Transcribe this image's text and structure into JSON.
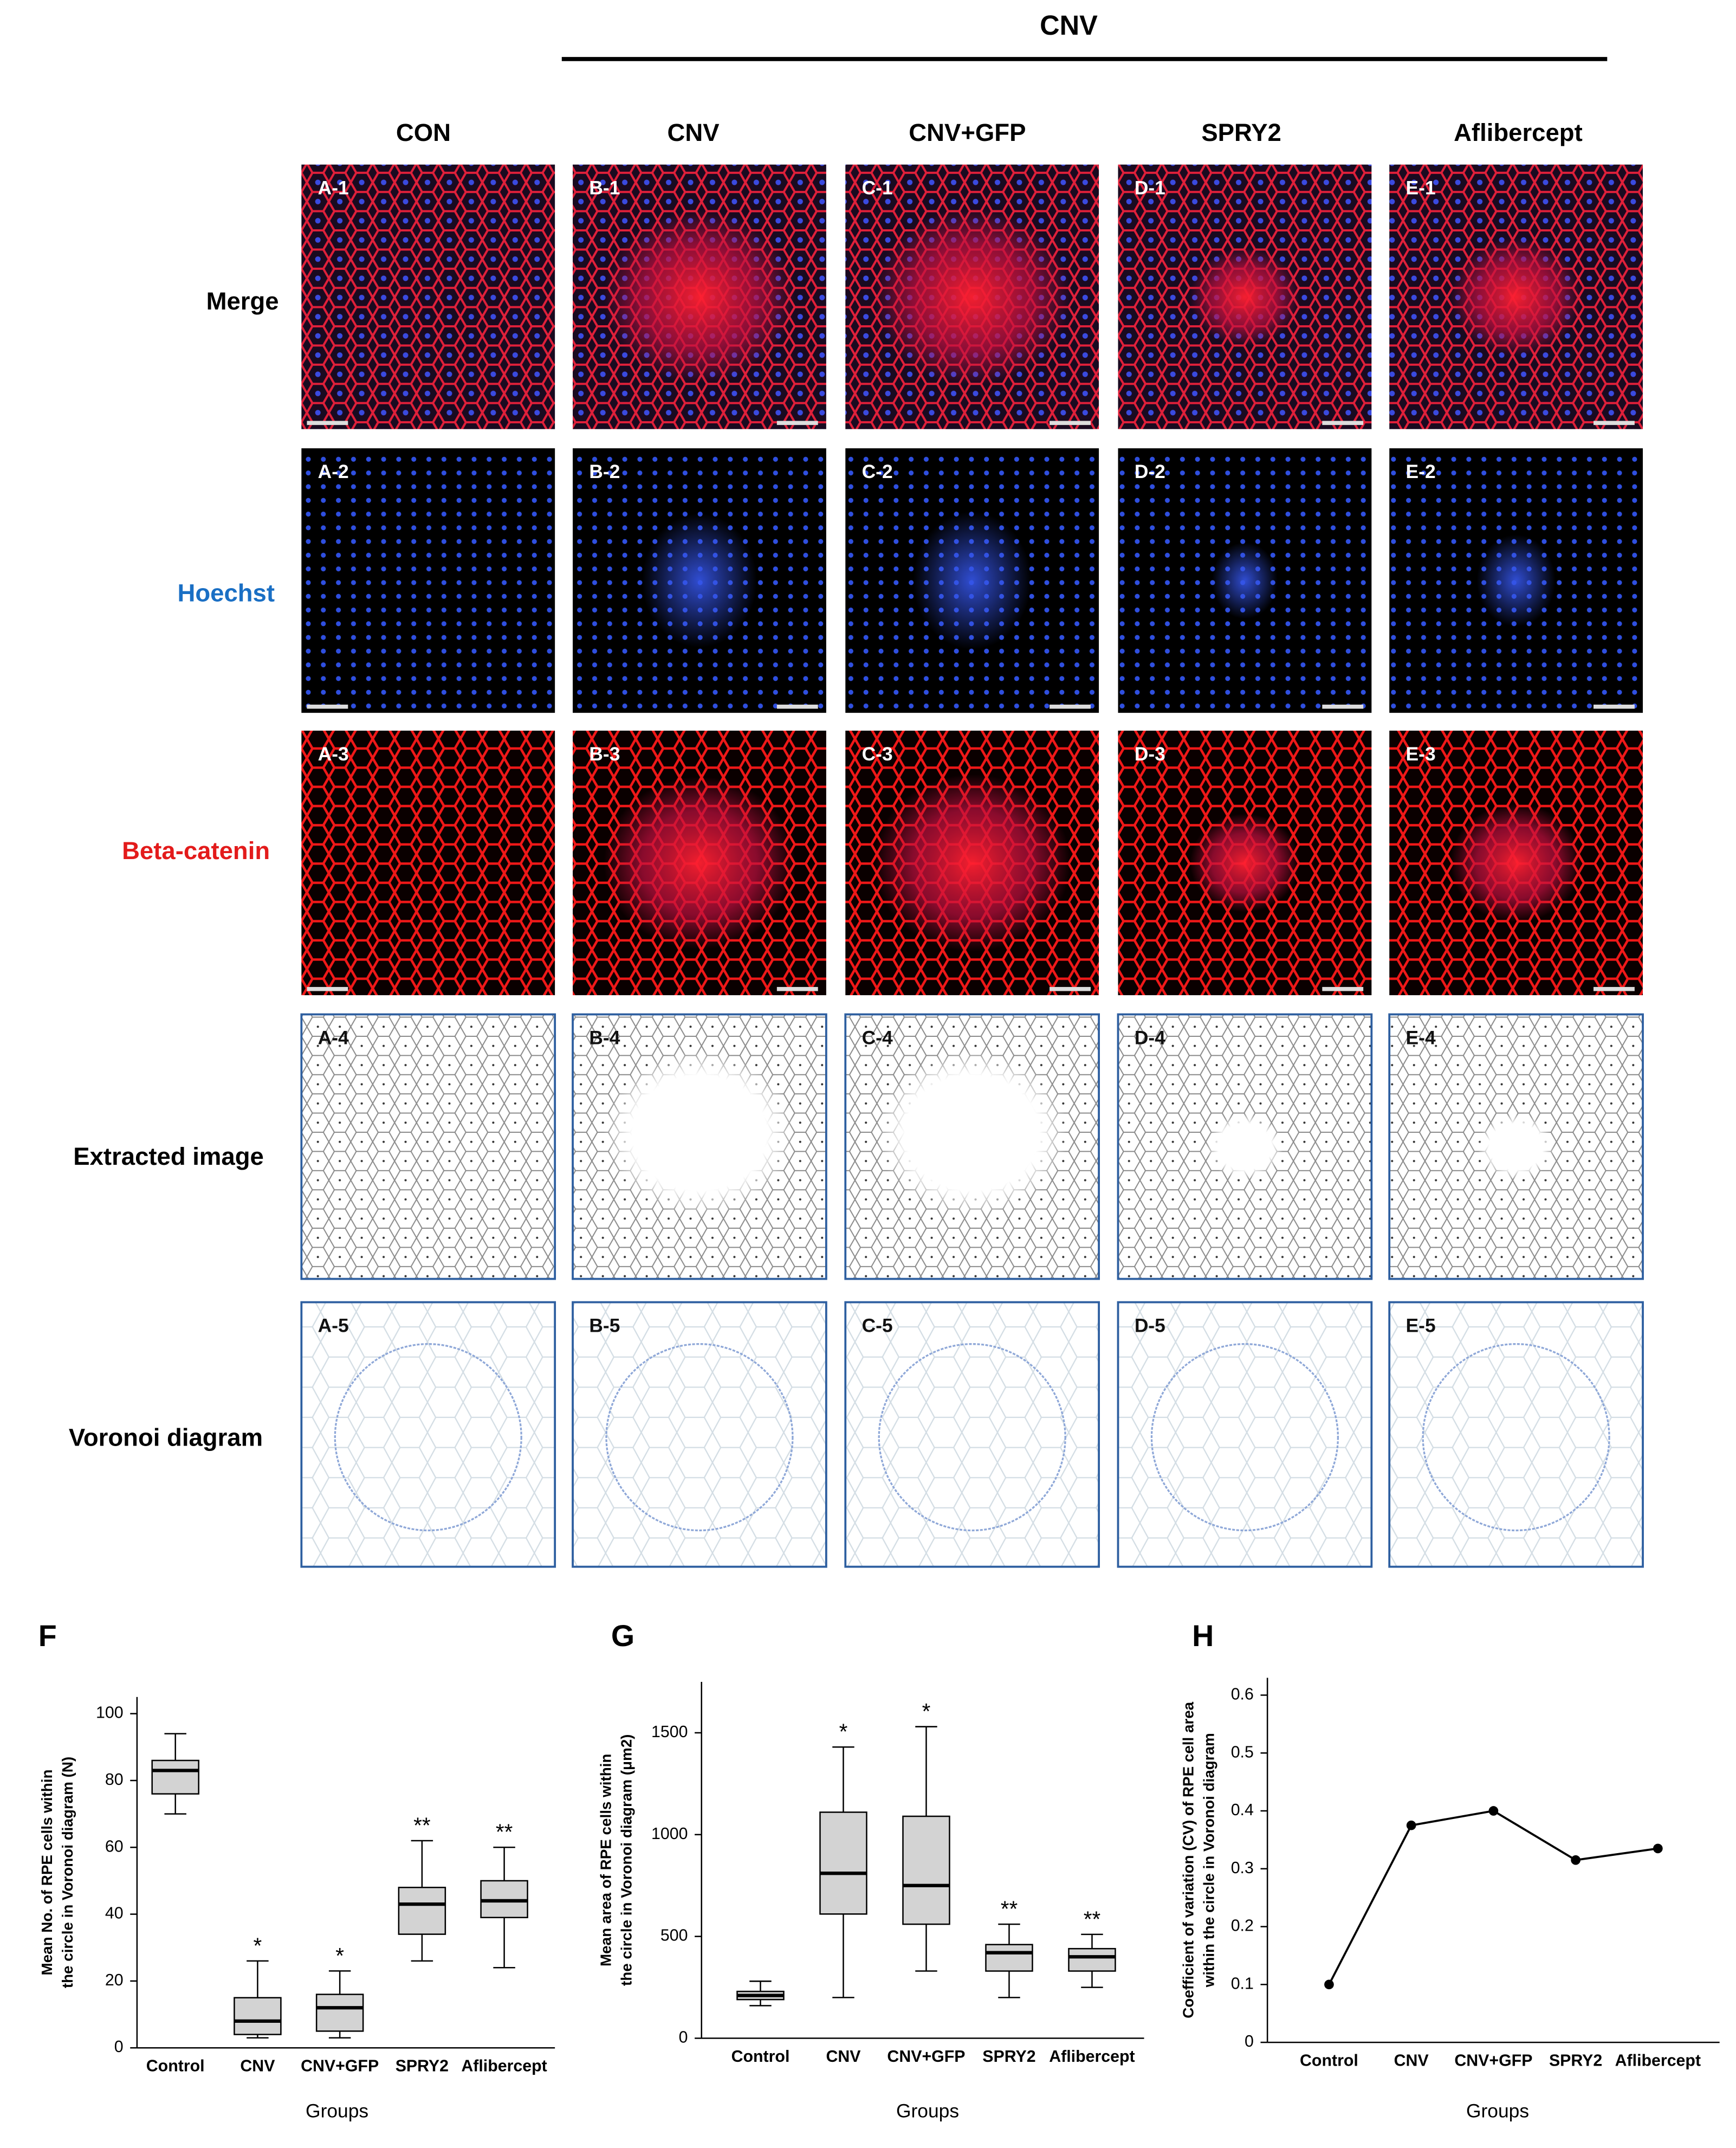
{
  "header": "CNV",
  "columns": [
    "CON",
    "CNV",
    "CNV+GFP",
    "SPRY2",
    "Aflibercept"
  ],
  "rows": [
    "Merge",
    "Hoechst",
    "Beta-catenin",
    "Extracted image",
    "Voronoi diagram"
  ],
  "tiles": [
    [
      "A-1",
      "B-1",
      "C-1",
      "D-1",
      "E-1"
    ],
    [
      "A-2",
      "B-2",
      "C-2",
      "D-2",
      "E-2"
    ],
    [
      "A-3",
      "B-3",
      "C-3",
      "D-3",
      "E-3"
    ],
    [
      "A-4",
      "B-4",
      "C-4",
      "D-4",
      "E-4"
    ],
    [
      "A-5",
      "B-5",
      "C-5",
      "D-5",
      "E-5"
    ]
  ],
  "chart_data": [
    {
      "type": "box",
      "panel": "F",
      "xlabel": "Groups",
      "ylabel": [
        "Mean No. of RPE cells within",
        "the circle in Voronoi diagram (N)"
      ],
      "categories": [
        "Control",
        "CNV",
        "CNV+GFP",
        "SPRY2",
        "Aflibercept"
      ],
      "min": [
        70,
        3,
        3,
        26,
        24
      ],
      "q1": [
        76,
        4,
        5,
        34,
        39
      ],
      "median": [
        83,
        8,
        12,
        43,
        44
      ],
      "q3": [
        86,
        15,
        16,
        48,
        50
      ],
      "max": [
        94,
        26,
        23,
        62,
        60
      ],
      "significance": [
        null,
        "*",
        "*",
        "**",
        "**"
      ],
      "color": "#d3d3d3",
      "ylim": [
        0,
        105
      ],
      "yticks": [
        0,
        20,
        40,
        60,
        80,
        100
      ]
    },
    {
      "type": "box",
      "panel": "G",
      "xlabel": "Groups",
      "ylabel": [
        "Mean area of RPE cells within",
        "the circle in Voronoi diagram (μm2)"
      ],
      "categories": [
        "Control",
        "CNV",
        "CNV+GFP",
        "SPRY2",
        "Aflibercept"
      ],
      "min": [
        160,
        200,
        330,
        200,
        250
      ],
      "q1": [
        190,
        610,
        560,
        330,
        330
      ],
      "median": [
        210,
        810,
        750,
        420,
        400
      ],
      "q3": [
        230,
        1110,
        1090,
        460,
        440
      ],
      "max": [
        280,
        1430,
        1530,
        560,
        510
      ],
      "significance": [
        null,
        "*",
        "*",
        "**",
        "**"
      ],
      "color": "#d3d3d3",
      "ylim": [
        0,
        1750
      ],
      "yticks": [
        0,
        500,
        1000,
        1500
      ]
    },
    {
      "type": "line",
      "panel": "H",
      "xlabel": "Groups",
      "ylabel": [
        "Coefficient of variation (CV) of RPE cell area",
        "within the circle in Voronoi diagram"
      ],
      "categories": [
        "Control",
        "CNV",
        "CNV+GFP",
        "SPRY2",
        "Aflibercept"
      ],
      "values": [
        0.1,
        0.375,
        0.4,
        0.315,
        0.335
      ],
      "color": "#000000",
      "ylim": [
        0,
        0.63
      ],
      "yticks": [
        0,
        0.1,
        0.2,
        0.3,
        0.4,
        0.5,
        0.6
      ]
    }
  ]
}
